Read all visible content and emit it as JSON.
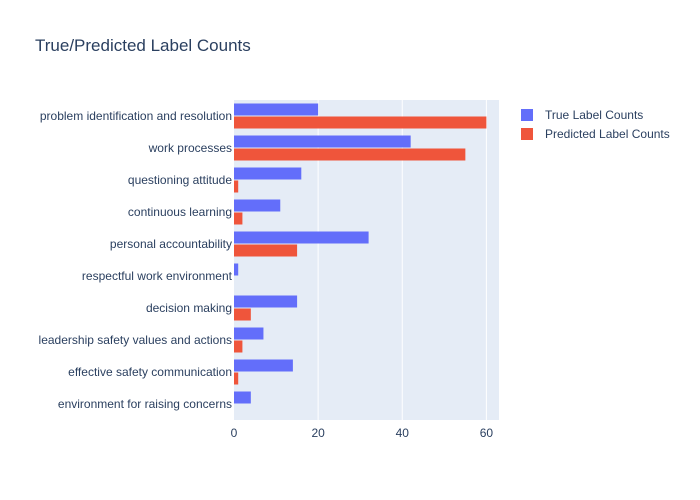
{
  "chart_data": {
    "type": "bar",
    "orientation": "horizontal",
    "title": "True/Predicted Label Counts",
    "xlabel": "",
    "ylabel": "",
    "xlim": [
      0,
      63
    ],
    "x_ticks": [
      0,
      20,
      40,
      60
    ],
    "grid": true,
    "legend_position": "top-right",
    "categories": [
      "problem identification and resolution",
      "work processes",
      "questioning attitude",
      "continuous learning",
      "personal accountability",
      "respectful work environment",
      "decision making",
      "leadership safety values and actions",
      "effective safety communication",
      "environment for raising concerns"
    ],
    "series": [
      {
        "name": "True Label Counts",
        "color": "#636efa",
        "values": [
          20,
          42,
          16,
          11,
          32,
          1,
          15,
          7,
          14,
          4
        ]
      },
      {
        "name": "Predicted Label Counts",
        "color": "#ef553b",
        "values": [
          60,
          55,
          1,
          2,
          15,
          0,
          4,
          2,
          1,
          0
        ]
      }
    ],
    "plot_background": "#e5ecf6"
  }
}
